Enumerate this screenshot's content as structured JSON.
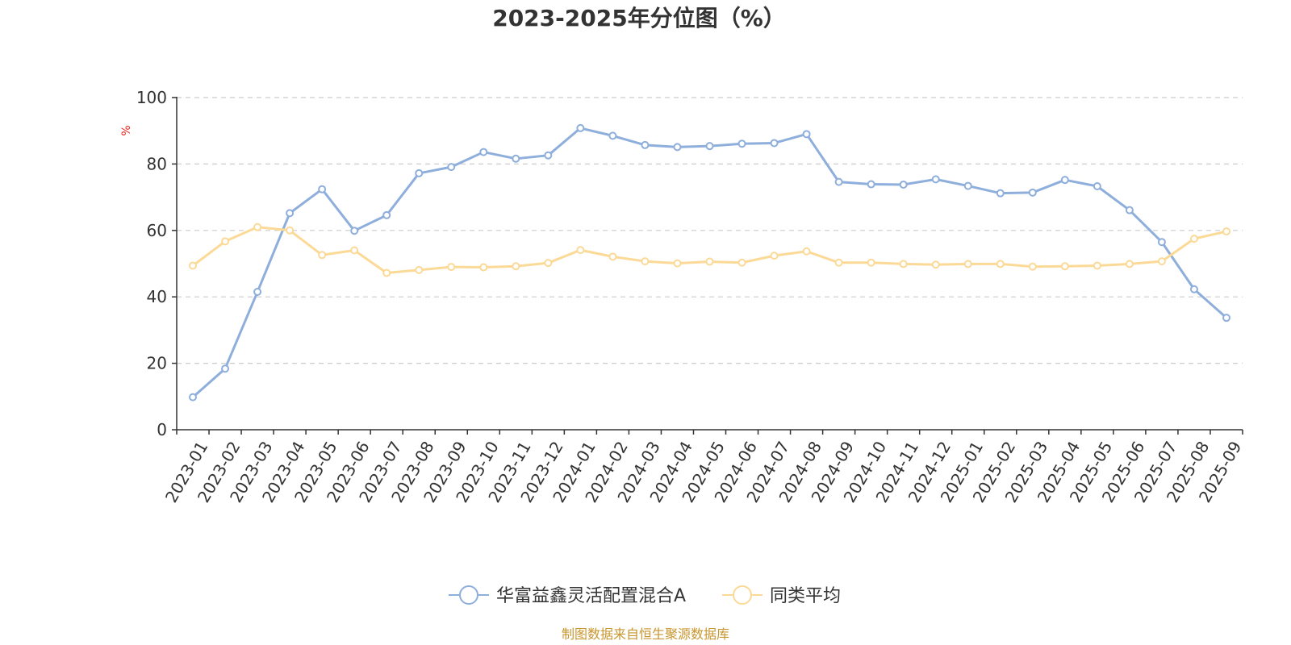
{
  "chart_data": {
    "type": "line",
    "title": "2023-2025年分位图（%）",
    "y_unit": "%",
    "ylim": [
      0,
      100
    ],
    "y_ticks": [
      0,
      20,
      40,
      60,
      80,
      100
    ],
    "grid": true,
    "legend_position": "bottom",
    "categories": [
      "2023-01",
      "2023-02",
      "2023-03",
      "2023-04",
      "2023-05",
      "2023-06",
      "2023-07",
      "2023-08",
      "2023-09",
      "2023-10",
      "2023-11",
      "2023-12",
      "2024-01",
      "2024-02",
      "2024-03",
      "2024-04",
      "2024-05",
      "2024-06",
      "2024-07",
      "2024-08",
      "2024-09",
      "2024-10",
      "2024-11",
      "2024-12",
      "2025-01",
      "2025-02",
      "2025-03",
      "2025-04",
      "2025-05",
      "2025-06",
      "2025-07",
      "2025-08",
      "2025-09"
    ],
    "series": [
      {
        "name": "华富益鑫灵活配置混合A",
        "color": "#8eaedb",
        "values": [
          9.8,
          18.4,
          41.5,
          65.2,
          72.4,
          59.9,
          64.6,
          77.2,
          79.1,
          83.6,
          81.6,
          82.6,
          90.8,
          88.5,
          85.7,
          85.1,
          85.4,
          86.1,
          86.3,
          89.0,
          74.6,
          73.9,
          73.8,
          75.4,
          73.4,
          71.2,
          71.4,
          75.2,
          73.3,
          66.1,
          56.5,
          42.3,
          33.7
        ]
      },
      {
        "name": "同类平均",
        "color": "#fbd997",
        "values": [
          49.4,
          56.7,
          61.0,
          60.0,
          52.6,
          54.0,
          47.2,
          48.1,
          49.0,
          48.9,
          49.2,
          50.2,
          54.1,
          52.1,
          50.7,
          50.1,
          50.6,
          50.3,
          52.4,
          53.7,
          50.3,
          50.3,
          49.9,
          49.7,
          49.9,
          49.9,
          49.1,
          49.2,
          49.4,
          49.9,
          50.7,
          57.5,
          59.7
        ]
      }
    ]
  },
  "footer": {
    "source_text": "制图数据来自恒生聚源数据库",
    "source_color": "#c8962e"
  }
}
